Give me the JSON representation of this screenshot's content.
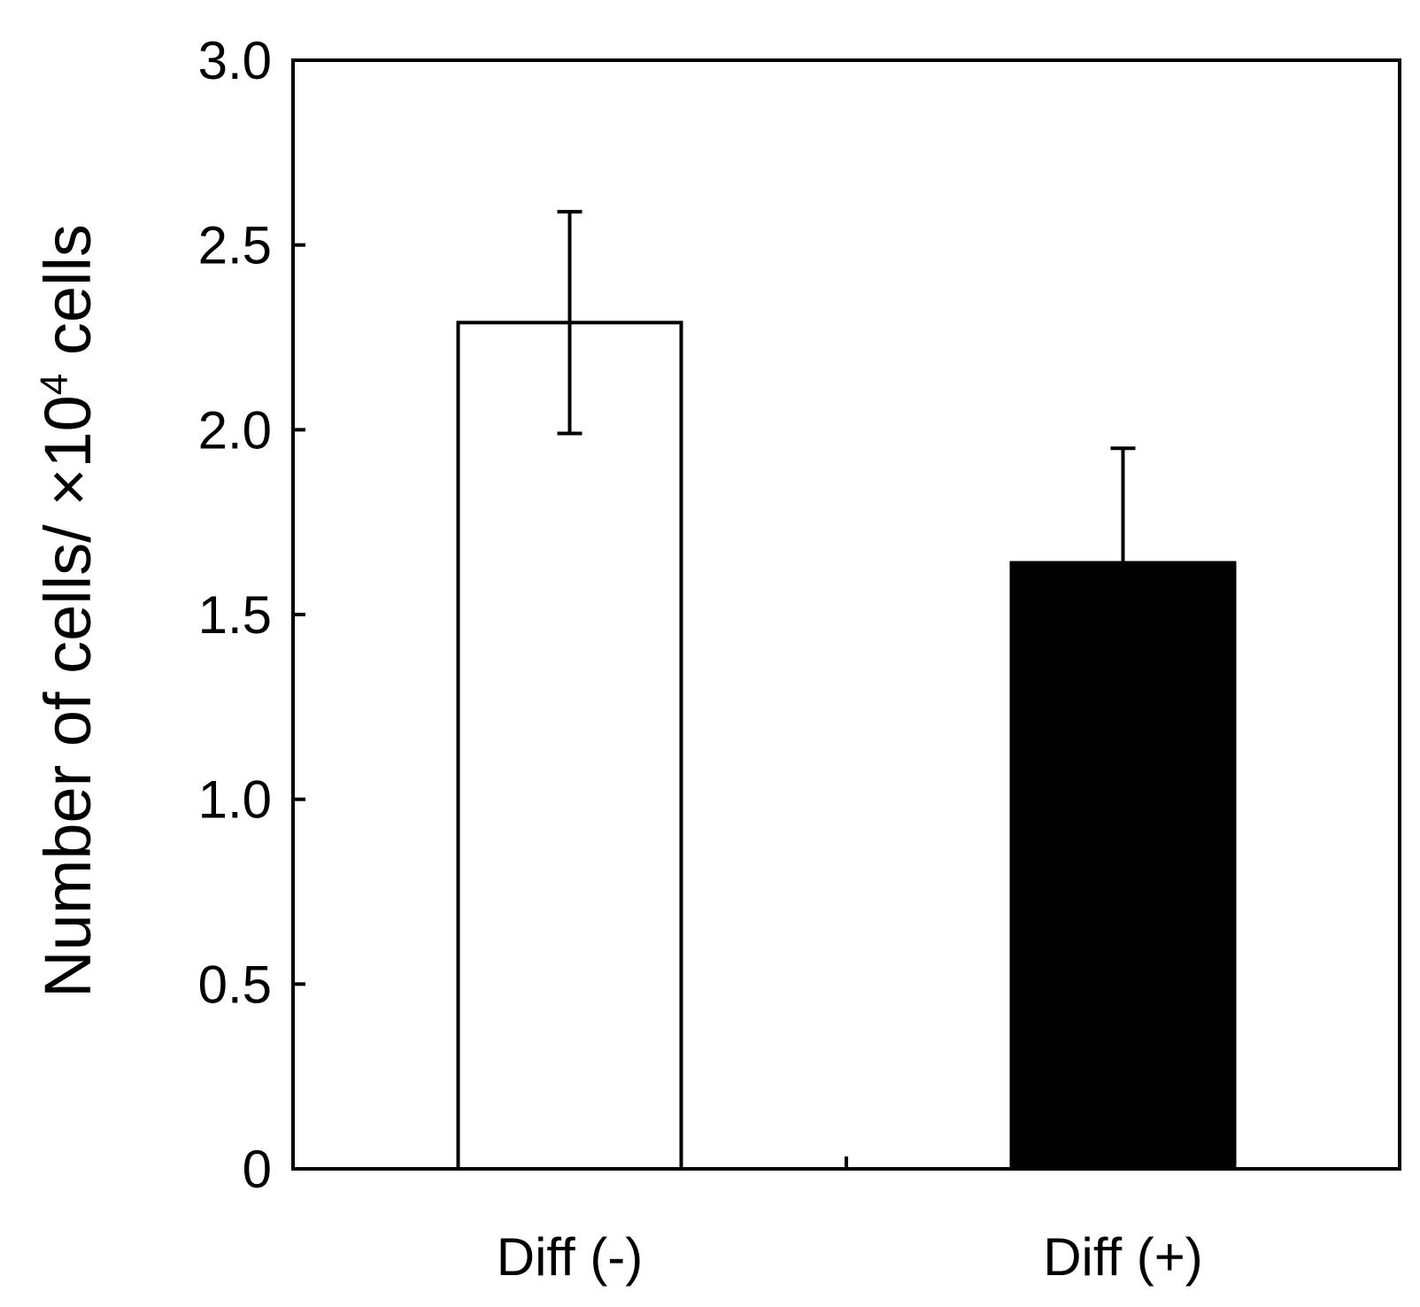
{
  "chart_data": {
    "type": "bar",
    "categories": [
      "Diff (-)",
      "Diff (+)"
    ],
    "values": [
      2.29,
      1.64
    ],
    "errors": [
      0.3,
      0.31
    ],
    "error_style": [
      "both",
      "upper"
    ],
    "bar_fills": [
      "#ffffff",
      "#000000"
    ],
    "title": "",
    "xlabel": "",
    "ylabel": {
      "main": "Number of cells/ ×10",
      "superscript": "4",
      "suffix": " cells"
    },
    "ylim": [
      0,
      3.0
    ],
    "yticks": [
      {
        "value": 0,
        "label": "0"
      },
      {
        "value": 0.5,
        "label": "0.5"
      },
      {
        "value": 1.0,
        "label": "1.0"
      },
      {
        "value": 1.5,
        "label": "1.5"
      },
      {
        "value": 2.0,
        "label": "2.0"
      },
      {
        "value": 2.5,
        "label": "2.5"
      },
      {
        "value": 3.0,
        "label": "3.0"
      }
    ],
    "grid": false,
    "legend": "none"
  }
}
